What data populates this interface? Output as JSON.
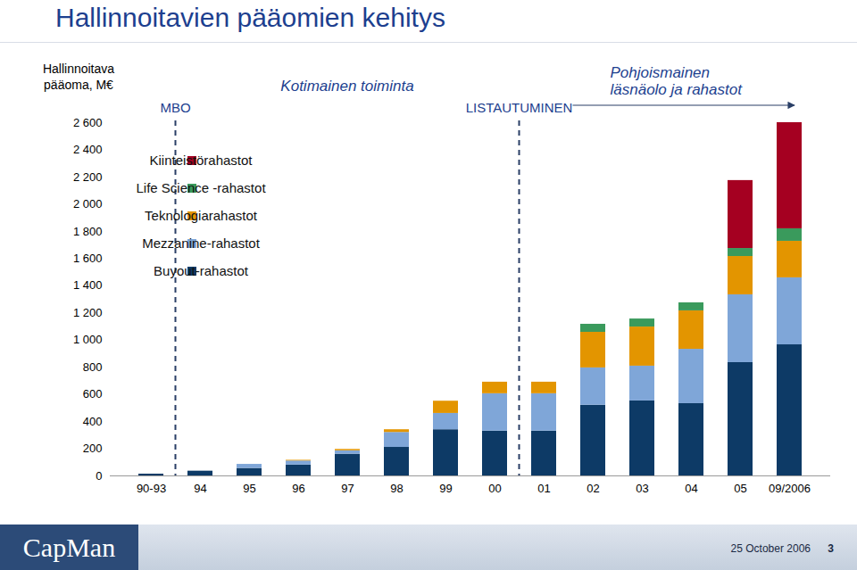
{
  "chart_data": {
    "type": "bar",
    "stacked": true,
    "title": "Hallinnoitavien pääomien kehitys",
    "y_label": "Hallinnoitava pääoma, M€",
    "categories": [
      "90-93",
      "94",
      "95",
      "96",
      "97",
      "98",
      "99",
      "00",
      "01",
      "02",
      "03",
      "04",
      "05",
      "09/2006"
    ],
    "series": [
      {
        "name": "Buyout-rahastot",
        "color": "#0d3a66",
        "values": [
          13,
          35,
          55,
          80,
          160,
          210,
          340,
          330,
          330,
          520,
          552,
          532,
          834,
          965
        ]
      },
      {
        "name": "Mezzanine-rahastot",
        "color": "#7fa6d8",
        "values": [
          0,
          0,
          30,
          30,
          25,
          110,
          120,
          275,
          275,
          275,
          256,
          400,
          499,
          493
        ]
      },
      {
        "name": "Teknologiarahastot",
        "color": "#e39500",
        "values": [
          0,
          0,
          0,
          5,
          10,
          20,
          90,
          85,
          85,
          262,
          288,
          283,
          282,
          269
        ]
      },
      {
        "name": "Life Science -rahastot",
        "color": "#3a9a5c",
        "values": [
          0,
          0,
          0,
          0,
          0,
          0,
          0,
          0,
          0,
          59,
          59,
          59,
          59,
          92
        ]
      },
      {
        "name": "Kiinteistörahastot",
        "color": "#a50021",
        "values": [
          0,
          0,
          0,
          0,
          0,
          0,
          0,
          0,
          0,
          0,
          0,
          0,
          500,
          781
        ]
      }
    ],
    "ylim": [
      0,
      2600
    ],
    "yticks": [
      0,
      200,
      400,
      600,
      800,
      {
        "value": 1000,
        "label": "1 000"
      },
      {
        "value": 1200,
        "label": "1 200"
      },
      {
        "value": 1400,
        "label": "1 400"
      },
      {
        "value": 1600,
        "label": "1 600"
      },
      {
        "value": 1800,
        "label": "1 800"
      },
      {
        "value": 2000,
        "label": "2 000"
      },
      {
        "value": 2200,
        "label": "2 200"
      },
      {
        "value": 2400,
        "label": "2 400"
      },
      {
        "value": 2600,
        "label": "2 600"
      }
    ],
    "grid": false,
    "legend": "top-left",
    "markers": [
      {
        "text": "MBO",
        "at": "94"
      },
      {
        "text": "LISTAUTUMINEN",
        "at": "01"
      }
    ],
    "phases": [
      [
        "Kotimainen toiminta"
      ],
      [
        "Pohjoismainen",
        "läsnäolo ja rahastot"
      ]
    ],
    "footer": {
      "logo": "CapMan",
      "date": "25 October 2006",
      "page": "3"
    }
  }
}
